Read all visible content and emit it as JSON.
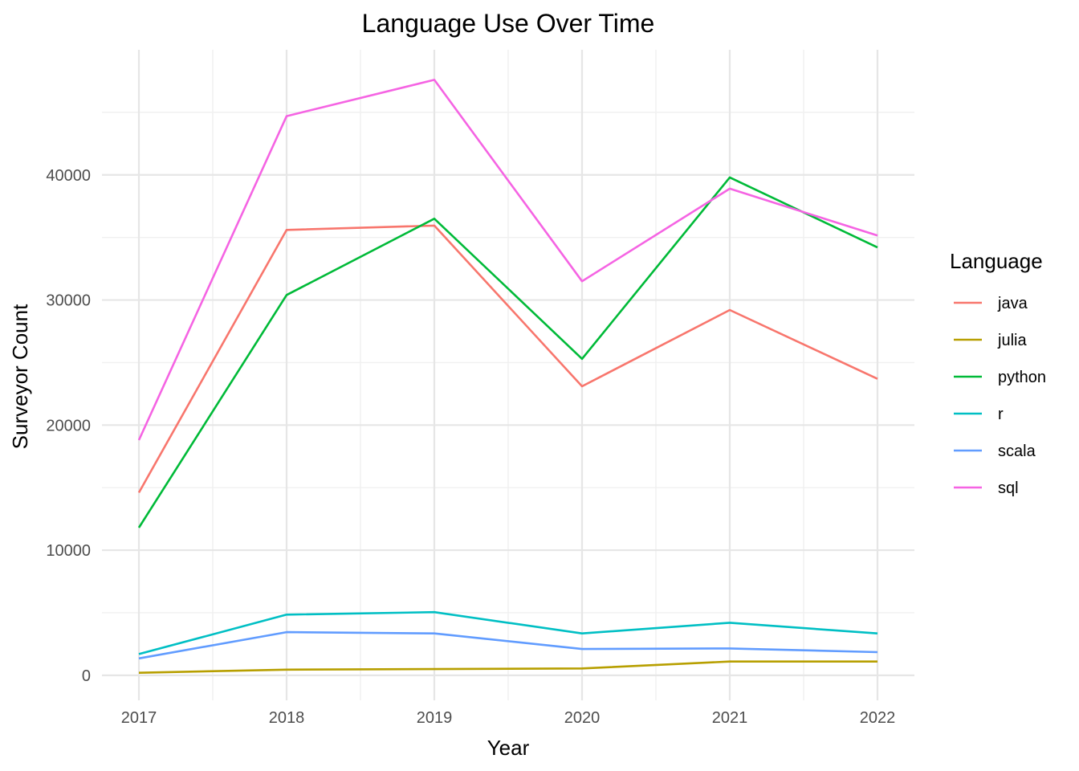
{
  "chart_data": {
    "type": "line",
    "title": "Language Use Over Time",
    "xlabel": "Year",
    "ylabel": "Surveyor Count",
    "x": [
      2017,
      2018,
      2019,
      2020,
      2021,
      2022
    ],
    "x_ticks": [
      "2017",
      "2018",
      "2019",
      "2020",
      "2021",
      "2022"
    ],
    "y_ticks": [
      "0",
      "10000",
      "20000",
      "30000",
      "40000"
    ],
    "y_tick_values": [
      0,
      10000,
      20000,
      30000,
      40000
    ],
    "xlim": [
      2016.75,
      2022.25
    ],
    "ylim": [
      -2000,
      50000
    ],
    "grid": true,
    "legend": {
      "title": "Language",
      "position": "right"
    },
    "series": [
      {
        "name": "java",
        "color": "#F8766D",
        "values": [
          14600,
          35600,
          35950,
          23100,
          29200,
          23700
        ]
      },
      {
        "name": "julia",
        "color": "#B79F00",
        "values": [
          200,
          450,
          500,
          550,
          1100,
          1100
        ]
      },
      {
        "name": "python",
        "color": "#00BA38",
        "values": [
          11800,
          30400,
          36500,
          25300,
          39800,
          34200
        ]
      },
      {
        "name": "r",
        "color": "#00BFC4",
        "values": [
          1700,
          4850,
          5050,
          3350,
          4200,
          3350
        ]
      },
      {
        "name": "scala",
        "color": "#619CFF",
        "values": [
          1350,
          3450,
          3350,
          2100,
          2150,
          1850
        ]
      },
      {
        "name": "sql",
        "color": "#F564E3",
        "values": [
          18800,
          44700,
          47600,
          31500,
          38900,
          35150
        ]
      }
    ]
  }
}
